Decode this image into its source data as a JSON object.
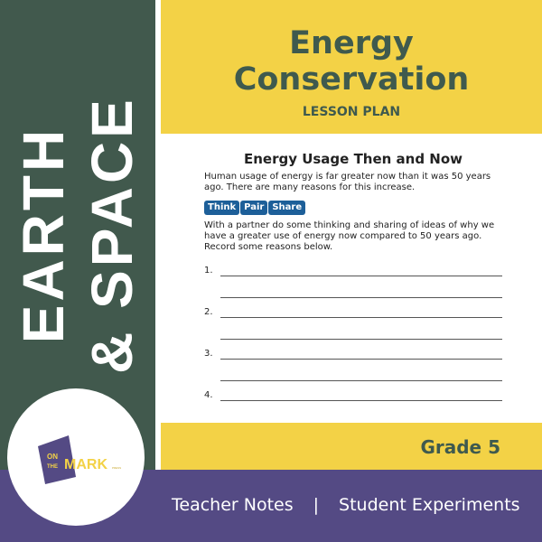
{
  "sidebar": {
    "line1": "EARTH",
    "line2": "& SPACE"
  },
  "header": {
    "title_line1": "Energy",
    "title_line2": "Conservation",
    "subtitle": "LESSON PLAN"
  },
  "page": {
    "heading": "Energy Usage Then and Now",
    "intro": "Human usage of energy is far greater now than it was 50 years ago. There are many reasons for this increase.",
    "tags": [
      "Think",
      "Pair",
      "Share"
    ],
    "instructions": "With a partner do some thinking and sharing of ideas of why we have a greater use of energy now compared to 50 years ago. Record some reasons below.",
    "items": [
      "1.",
      "2.",
      "3.",
      "4."
    ]
  },
  "grade": "Grade 5",
  "footer": {
    "left": "Teacher Notes",
    "sep": "|",
    "right": "Student Experiments"
  },
  "logo": {
    "text": "ON THE MARK PRESS"
  },
  "colors": {
    "green": "#41594d",
    "yellow": "#f3d246",
    "purple": "#544a84",
    "blue": "#1d5f99"
  }
}
